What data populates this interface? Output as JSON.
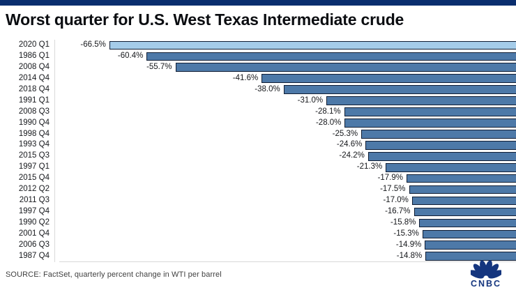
{
  "header": {
    "title": "Worst quarter for U.S. West Texas Intermediate crude"
  },
  "chart_data": {
    "type": "bar",
    "orientation": "horizontal",
    "title": "Worst quarter for U.S. West Texas Intermediate crude",
    "xlabel": "",
    "ylabel": "",
    "xlim": [
      -70,
      0
    ],
    "grid": false,
    "legend": false,
    "value_label_format": "percent_one_decimal",
    "categories": [
      "2020 Q1",
      "1986 Q1",
      "2008 Q4",
      "2014 Q4",
      "2018 Q4",
      "1991 Q1",
      "2008 Q3",
      "1990 Q4",
      "1998 Q4",
      "1993 Q4",
      "2015 Q3",
      "1997 Q1",
      "2015 Q4",
      "2012 Q2",
      "2011 Q3",
      "1997 Q4",
      "1990 Q2",
      "2001 Q4",
      "2006 Q3",
      "1987 Q4"
    ],
    "values": [
      -66.5,
      -60.4,
      -55.7,
      -41.6,
      -38.0,
      -31.0,
      -28.1,
      -28.0,
      -25.3,
      -24.6,
      -24.2,
      -21.3,
      -17.9,
      -17.5,
      -17.0,
      -16.7,
      -15.8,
      -15.3,
      -14.9,
      -14.8
    ],
    "value_labels": [
      "-66.5%",
      "-60.4%",
      "-55.7%",
      "-41.6%",
      "-38.0%",
      "-31.0%",
      "-28.1%",
      "-28.0%",
      "-25.3%",
      "-24.6%",
      "-24.2%",
      "-21.3%",
      "-17.9%",
      "-17.5%",
      "-17.0%",
      "-16.7%",
      "-15.8%",
      "-15.3%",
      "-14.9%",
      "-14.8%"
    ],
    "highlight_index": 0,
    "highlight_color": "#a5cce9",
    "bar_color": "#4d79a8",
    "bar_border_color": "#101d33"
  },
  "footer": {
    "source": "SOURCE: FactSet, quarterly percent change in WTI per barrel",
    "logo_text": "CNBC"
  },
  "colors": {
    "top_bar": "#0a2e6e",
    "logo_navy": "#14357e"
  }
}
